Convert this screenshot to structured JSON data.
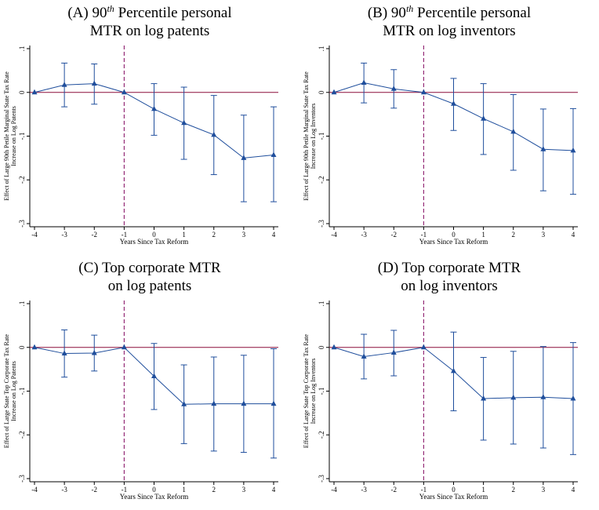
{
  "colors": {
    "series": "#1f4e9c",
    "zero_line": "#8b0e3a",
    "reform_line": "#8b1a6b",
    "axis": "#000000"
  },
  "chart_data": [
    {
      "type": "line",
      "title_prefix": "(A)  90",
      "title_sup": "th",
      "title_line1_rest": " Percentile personal",
      "title_line2": "MTR on log patents",
      "xlabel": "Years Since Tax Reform",
      "ylabel_line1": "Effect of Large 90th Petile Marginal State Tax Rate",
      "ylabel_line2": "Increase on Log Patents",
      "x": [
        -4,
        -3,
        -2,
        -1,
        0,
        1,
        2,
        3,
        4
      ],
      "y": [
        0,
        0.017,
        0.02,
        0,
        -0.038,
        -0.07,
        -0.097,
        -0.15,
        -0.143
      ],
      "ci_low": [
        0,
        -0.033,
        -0.027,
        0,
        -0.098,
        -0.153,
        -0.188,
        -0.25,
        -0.25
      ],
      "ci_high": [
        0,
        0.067,
        0.065,
        0,
        0.02,
        0.012,
        -0.007,
        -0.052,
        -0.033
      ],
      "xlim": [
        -4,
        4
      ],
      "ylim": [
        -0.3,
        0.1
      ],
      "yticks": [
        0.1,
        0,
        -0.1,
        -0.2,
        -0.3
      ],
      "ytick_labels": [
        ".1",
        "0",
        "-.1",
        "-.2",
        "-.3"
      ],
      "xticks": [
        -4,
        -3,
        -2,
        -1,
        0,
        1,
        2,
        3,
        4
      ],
      "xtick_labels": [
        "-4",
        "-3",
        "-2",
        "-1",
        "0",
        "1",
        "2",
        "3",
        "4"
      ],
      "reference_lines": {
        "horizontal": 0,
        "vertical": -1
      },
      "grid": false
    },
    {
      "type": "line",
      "title_prefix": "(B)  90",
      "title_sup": "th",
      "title_line1_rest": " Percentile personal",
      "title_line2": "MTR on log inventors",
      "xlabel": "Years Since Tax Reform",
      "ylabel_line1": "Effect of Large 90th Petile Marginal State Tax Rate",
      "ylabel_line2": "Increase on Log Inventors",
      "x": [
        -4,
        -3,
        -2,
        -1,
        0,
        1,
        2,
        3,
        4
      ],
      "y": [
        0,
        0.022,
        0.008,
        0,
        -0.026,
        -0.06,
        -0.09,
        -0.13,
        -0.133
      ],
      "ci_low": [
        0,
        -0.024,
        -0.036,
        0,
        -0.087,
        -0.142,
        -0.178,
        -0.225,
        -0.233
      ],
      "ci_high": [
        0,
        0.067,
        0.052,
        0,
        0.032,
        0.02,
        -0.005,
        -0.038,
        -0.037
      ],
      "xlim": [
        -4,
        4
      ],
      "ylim": [
        -0.3,
        0.1
      ],
      "yticks": [
        0.1,
        0,
        -0.1,
        -0.2,
        -0.3
      ],
      "ytick_labels": [
        ".1",
        "0",
        "-.1",
        "-.2",
        "-.3"
      ],
      "xticks": [
        -4,
        -3,
        -2,
        -1,
        0,
        1,
        2,
        3,
        4
      ],
      "xtick_labels": [
        "-4",
        "-3",
        "-2",
        "-1",
        "0",
        "1",
        "2",
        "3",
        "4"
      ],
      "reference_lines": {
        "horizontal": 0,
        "vertical": -1
      },
      "grid": false
    },
    {
      "type": "line",
      "title_prefix": "(C)  Top corporate MTR",
      "title_sup": "",
      "title_line1_rest": "",
      "title_line2": "on log patents",
      "xlabel": "Years Since Tax Reform",
      "ylabel_line1": "Effect of Large State Top Corporate Tax Rate",
      "ylabel_line2": "Increase on Log Patents",
      "x": [
        -4,
        -3,
        -2,
        -1,
        0,
        1,
        2,
        3,
        4
      ],
      "y": [
        0,
        -0.014,
        -0.013,
        0,
        -0.066,
        -0.13,
        -0.129,
        -0.129,
        -0.129
      ],
      "ci_low": [
        0,
        -0.068,
        -0.054,
        0,
        -0.142,
        -0.22,
        -0.237,
        -0.24,
        -0.253
      ],
      "ci_high": [
        0,
        0.04,
        0.028,
        0,
        0.009,
        -0.04,
        -0.022,
        -0.018,
        -0.003
      ],
      "xlim": [
        -4,
        4
      ],
      "ylim": [
        -0.3,
        0.1
      ],
      "yticks": [
        0.1,
        0,
        -0.1,
        -0.2,
        -0.3
      ],
      "ytick_labels": [
        ".1",
        "0",
        "-.1",
        "-.2",
        "-.3"
      ],
      "xticks": [
        -4,
        -3,
        -2,
        -1,
        0,
        1,
        2,
        3,
        4
      ],
      "xtick_labels": [
        "-4",
        "-3",
        "-2",
        "-1",
        "0",
        "1",
        "2",
        "3",
        "4"
      ],
      "reference_lines": {
        "horizontal": 0,
        "vertical": -1
      },
      "grid": false
    },
    {
      "type": "line",
      "title_prefix": "(D)  Top corporate MTR",
      "title_sup": "",
      "title_line1_rest": "",
      "title_line2": "on log inventors",
      "xlabel": "Years Since Tax Reform",
      "ylabel_line1": "Effect of Large State Top Corporate Tax Rate",
      "ylabel_line2": "Increase on Log Inventors",
      "x": [
        -4,
        -3,
        -2,
        -1,
        0,
        1,
        2,
        3,
        4
      ],
      "y": [
        0,
        -0.021,
        -0.012,
        0,
        -0.054,
        -0.117,
        -0.115,
        -0.114,
        -0.117
      ],
      "ci_low": [
        0,
        -0.072,
        -0.065,
        0,
        -0.145,
        -0.212,
        -0.221,
        -0.23,
        -0.245
      ],
      "ci_high": [
        0,
        0.03,
        0.039,
        0,
        0.035,
        -0.023,
        -0.009,
        0.002,
        0.011
      ],
      "xlim": [
        -4,
        4
      ],
      "ylim": [
        -0.3,
        0.1
      ],
      "yticks": [
        0.1,
        0,
        -0.1,
        -0.2,
        -0.3
      ],
      "ytick_labels": [
        ".1",
        "0",
        "-.1",
        "-.2",
        "-.3"
      ],
      "xticks": [
        -4,
        -3,
        -2,
        -1,
        0,
        1,
        2,
        3,
        4
      ],
      "xtick_labels": [
        "-4",
        "-3",
        "-2",
        "-1",
        "0",
        "1",
        "2",
        "3",
        "4"
      ],
      "reference_lines": {
        "horizontal": 0,
        "vertical": -1
      },
      "grid": false
    }
  ]
}
